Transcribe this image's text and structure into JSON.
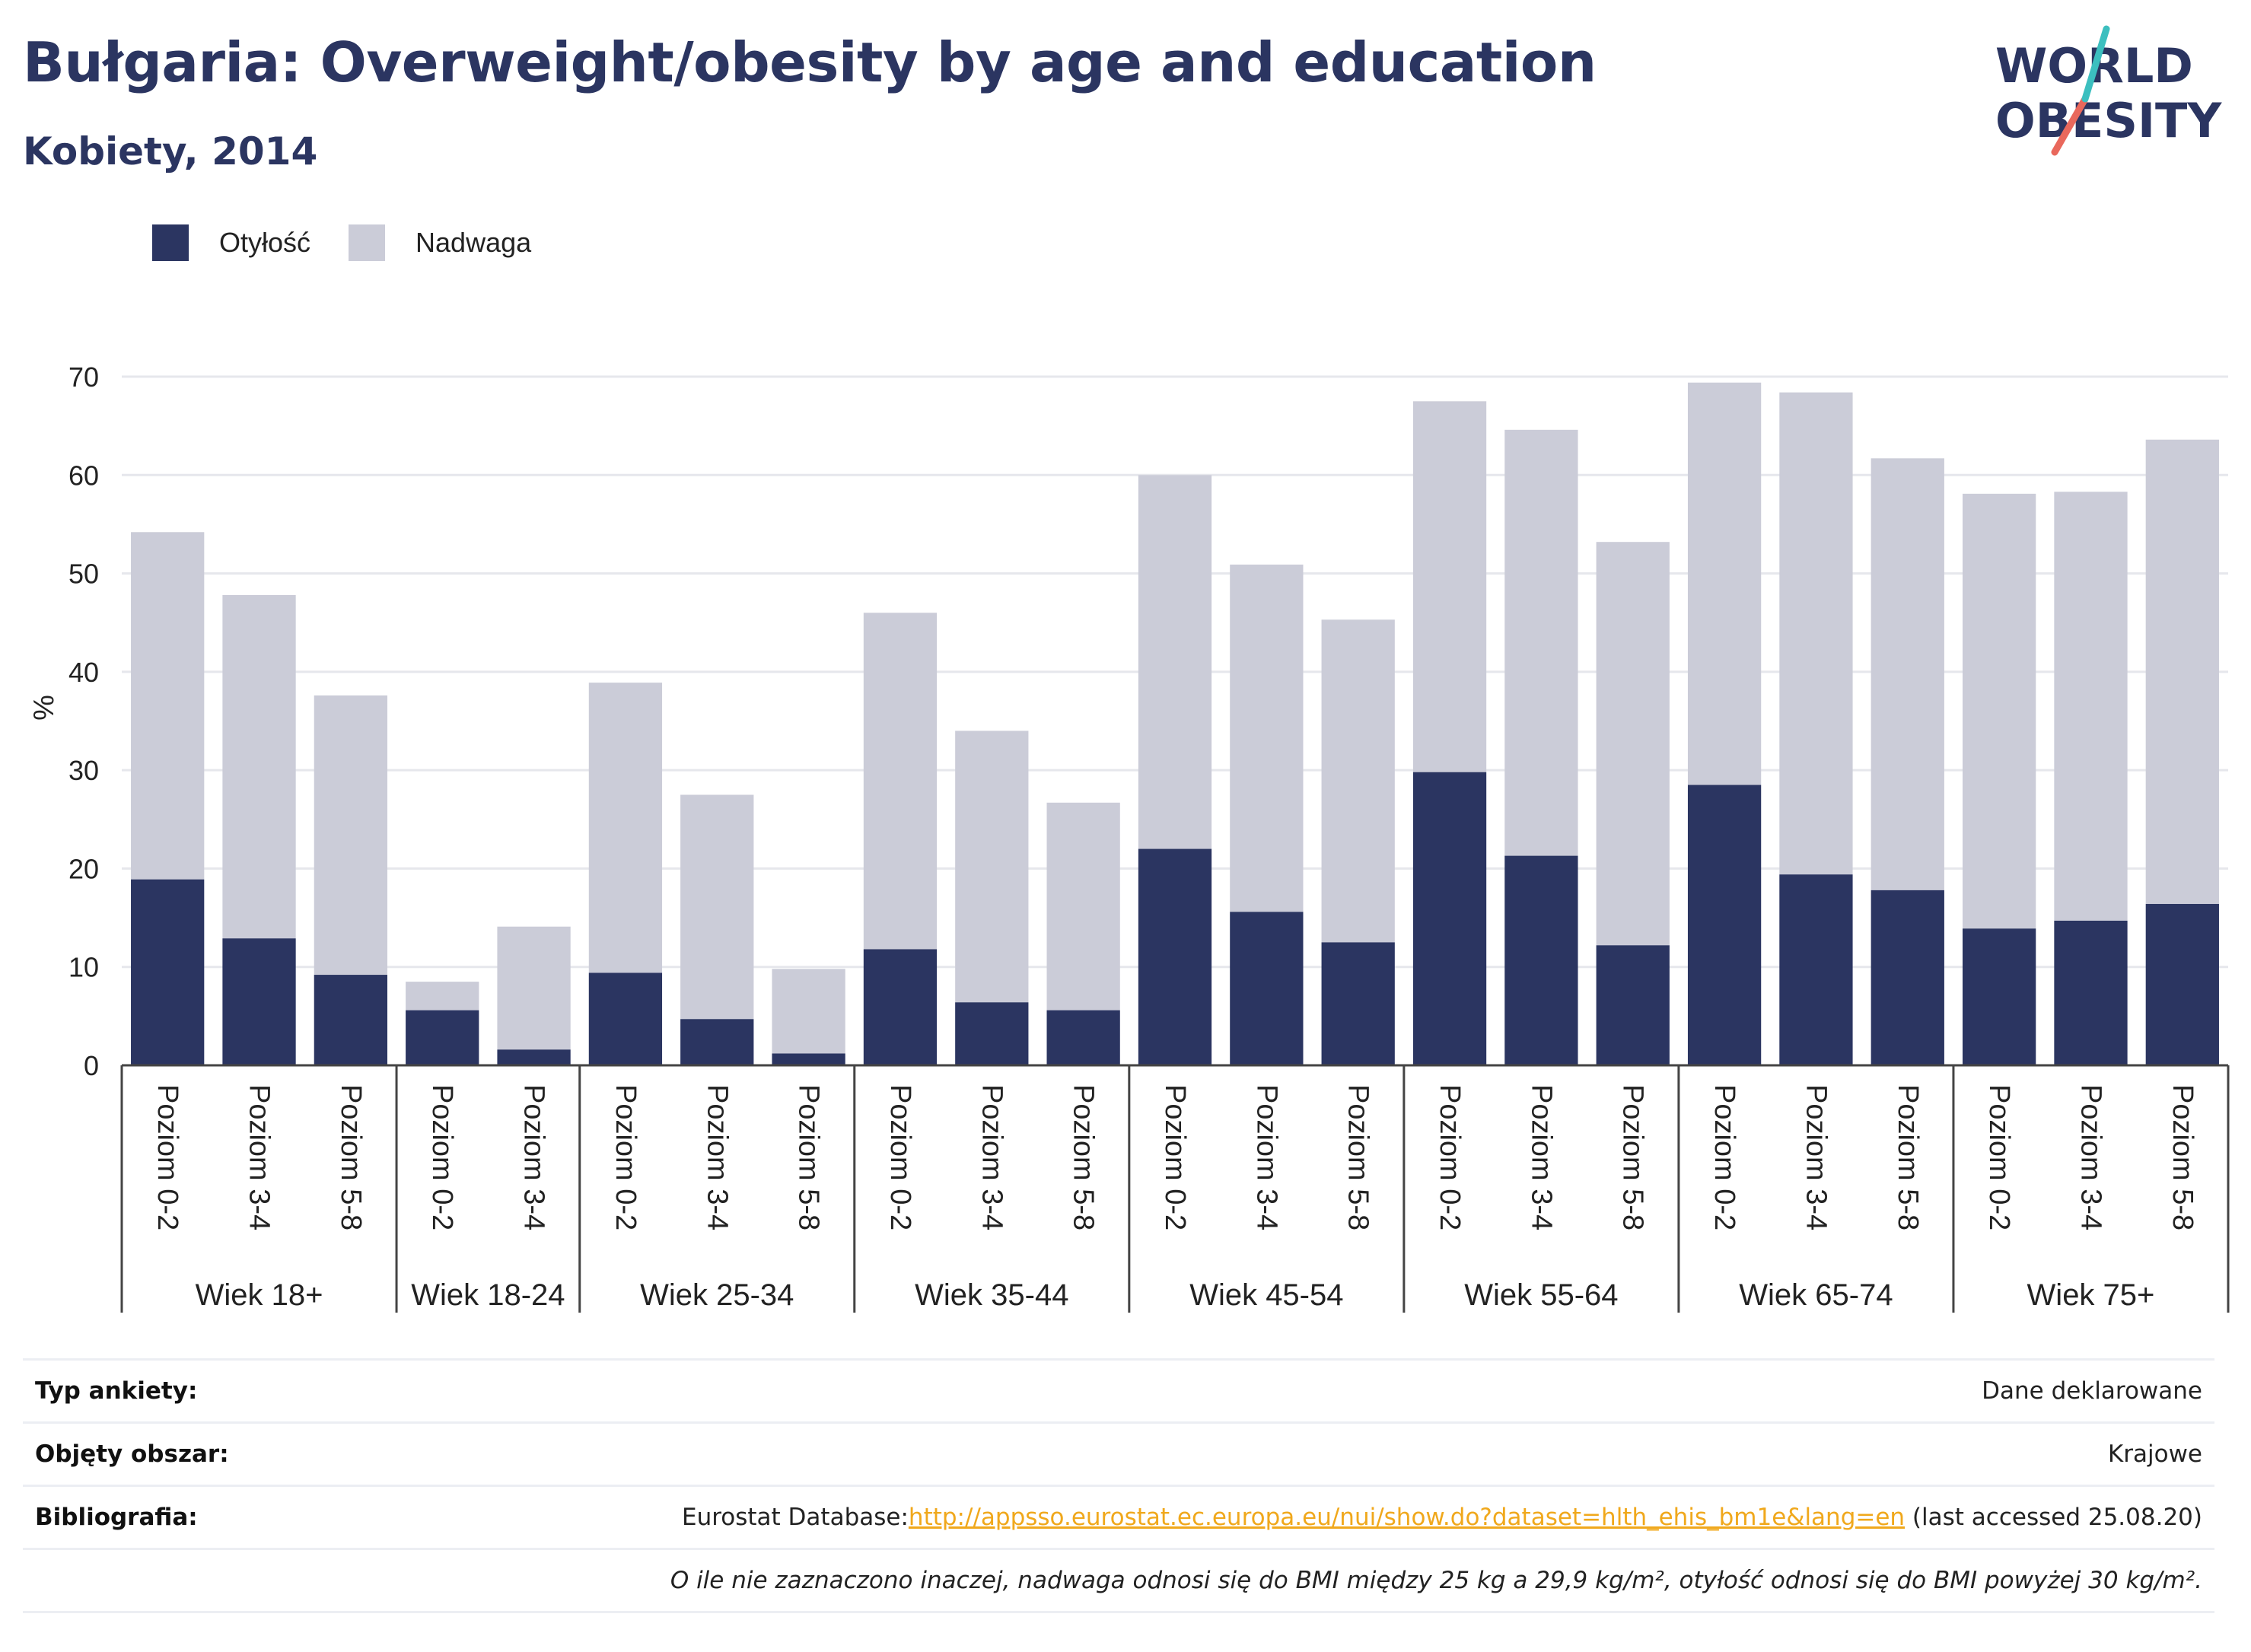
{
  "header": {
    "title": "Bułgaria: Overweight/obesity by age and education",
    "subtitle": "Kobiety, 2014"
  },
  "logo": {
    "line1": "WORLD",
    "line2": "OBESITY"
  },
  "colors": {
    "obesity": "#2b3561",
    "overweight": "#cbccd8",
    "title": "#2b3561",
    "link": "#f0a81c"
  },
  "legend": {
    "obesity_label": "Otyłość",
    "overweight_label": "Nadwaga"
  },
  "chart_data": {
    "type": "bar",
    "stacked": true,
    "ylabel": "%",
    "ylim": [
      0,
      70
    ],
    "yticks": [
      0,
      10,
      20,
      30,
      40,
      50,
      60,
      70
    ],
    "grid": true,
    "legend_position": "top-left",
    "groups": [
      {
        "name": "Wiek 18+",
        "categories": [
          "Poziom 0-2",
          "Poziom 3-4",
          "Poziom 5-8"
        ]
      },
      {
        "name": "Wiek 18-24",
        "categories": [
          "Poziom 0-2",
          "Poziom 3-4"
        ]
      },
      {
        "name": "Wiek 25-34",
        "categories": [
          "Poziom 0-2",
          "Poziom 3-4",
          "Poziom 5-8"
        ]
      },
      {
        "name": "Wiek 35-44",
        "categories": [
          "Poziom 0-2",
          "Poziom 3-4",
          "Poziom 5-8"
        ]
      },
      {
        "name": "Wiek 45-54",
        "categories": [
          "Poziom 0-2",
          "Poziom 3-4",
          "Poziom 5-8"
        ]
      },
      {
        "name": "Wiek 55-64",
        "categories": [
          "Poziom 0-2",
          "Poziom 3-4",
          "Poziom 5-8"
        ]
      },
      {
        "name": "Wiek 65-74",
        "categories": [
          "Poziom 0-2",
          "Poziom 3-4",
          "Poziom 5-8"
        ]
      },
      {
        "name": "Wiek 75+",
        "categories": [
          "Poziom 0-2",
          "Poziom 3-4",
          "Poziom 5-8"
        ]
      }
    ],
    "series": [
      {
        "name": "Otyłość",
        "values": [
          18.9,
          12.9,
          9.2,
          5.6,
          1.6,
          9.4,
          4.7,
          1.2,
          11.8,
          6.4,
          5.6,
          22.0,
          15.6,
          12.5,
          29.8,
          21.3,
          12.2,
          28.5,
          19.4,
          17.8,
          13.9,
          14.7,
          16.4
        ]
      },
      {
        "name": "Nadwaga",
        "values": [
          35.3,
          34.9,
          28.4,
          2.9,
          12.5,
          29.5,
          22.8,
          8.6,
          34.2,
          27.6,
          21.1,
          38.0,
          35.3,
          32.8,
          37.7,
          43.3,
          41.0,
          40.9,
          49.0,
          43.9,
          44.2,
          43.6,
          47.2
        ]
      }
    ]
  },
  "info": {
    "survey_label": "Typ ankiety:",
    "survey_value": "Dane deklarowane",
    "area_label": "Objęty obszar:",
    "area_value": "Krajowe",
    "biblio_label": "Bibliografia:",
    "biblio_prefix": "Eurostat Database:",
    "biblio_link": "http://appsso.eurostat.ec.europa.eu/nui/show.do?dataset=hlth_ehis_bm1e&lang=en",
    "biblio_suffix": " (last accessed 25.08.20)",
    "note": "O ile nie zaznaczono inaczej, nadwaga odnosi się do BMI między 25 kg a 29,9 kg/m², otyłość odnosi się do BMI powyżej 30 kg/m²."
  }
}
